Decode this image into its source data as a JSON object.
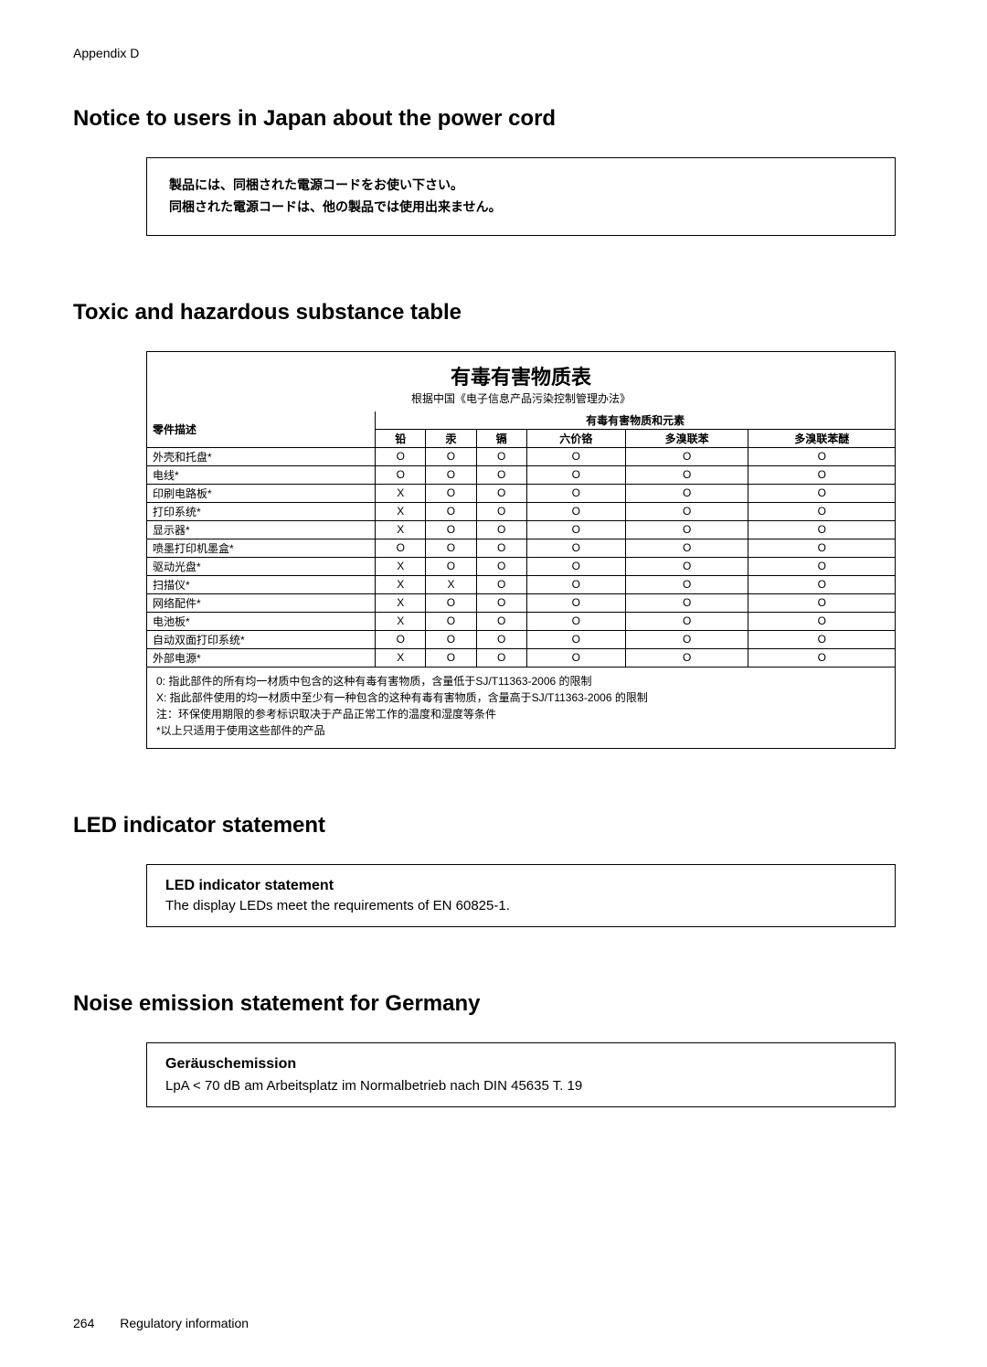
{
  "appendix_label": "Appendix D",
  "sections": {
    "japan_cord": {
      "heading": "Notice to users in Japan about the power cord",
      "lines": [
        "製品には、同梱された電源コードをお使い下さい。",
        "同梱された電源コードは、他の製品では使用出来ません。"
      ]
    },
    "toxic": {
      "heading": "Toxic and hazardous substance table",
      "title": "有毒有害物质表",
      "subtitle": "根据中国《电子信息产品污染控制管理办法》",
      "col_partdesc": "零件描述",
      "col_group": "有毒有害物质和元素",
      "substances": [
        "铅",
        "汞",
        "镉",
        "六价铬",
        "多溴联苯",
        "多溴联苯醚"
      ],
      "rows": [
        {
          "name": "外壳和托盘*",
          "vals": [
            "O",
            "O",
            "O",
            "O",
            "O",
            "O"
          ]
        },
        {
          "name": "电线*",
          "vals": [
            "O",
            "O",
            "O",
            "O",
            "O",
            "O"
          ]
        },
        {
          "name": "印刷电路板*",
          "vals": [
            "X",
            "O",
            "O",
            "O",
            "O",
            "O"
          ]
        },
        {
          "name": "打印系统*",
          "vals": [
            "X",
            "O",
            "O",
            "O",
            "O",
            "O"
          ]
        },
        {
          "name": "显示器*",
          "vals": [
            "X",
            "O",
            "O",
            "O",
            "O",
            "O"
          ]
        },
        {
          "name": "喷墨打印机墨盒*",
          "vals": [
            "O",
            "O",
            "O",
            "O",
            "O",
            "O"
          ]
        },
        {
          "name": "驱动光盘*",
          "vals": [
            "X",
            "O",
            "O",
            "O",
            "O",
            "O"
          ]
        },
        {
          "name": "扫描仪*",
          "vals": [
            "X",
            "X",
            "O",
            "O",
            "O",
            "O"
          ]
        },
        {
          "name": "网络配件*",
          "vals": [
            "X",
            "O",
            "O",
            "O",
            "O",
            "O"
          ]
        },
        {
          "name": "电池板*",
          "vals": [
            "X",
            "O",
            "O",
            "O",
            "O",
            "O"
          ]
        },
        {
          "name": "自动双面打印系统*",
          "vals": [
            "O",
            "O",
            "O",
            "O",
            "O",
            "O"
          ]
        },
        {
          "name": "外部电源*",
          "vals": [
            "X",
            "O",
            "O",
            "O",
            "O",
            "O"
          ]
        }
      ],
      "notes": [
        "0: 指此部件的所有均一材质中包含的这种有毒有害物质，含量低于SJ/T11363-2006 的限制",
        "X: 指此部件使用的均一材质中至少有一种包含的这种有毒有害物质，含量高于SJ/T11363-2006 的限制",
        "注：环保使用期限的参考标识取决于产品正常工作的温度和湿度等条件",
        "*以上只适用于使用这些部件的产品"
      ]
    },
    "led": {
      "heading": "LED indicator statement",
      "box_title": "LED indicator statement",
      "box_text": "The display LEDs meet the requirements of EN 60825-1."
    },
    "noise": {
      "heading": "Noise emission statement for Germany",
      "box_title": "Geräuschemission",
      "box_text": "LpA < 70 dB am Arbeitsplatz im Normalbetrieb nach DIN 45635 T. 19"
    }
  },
  "footer": {
    "page_number": "264",
    "title": "Regulatory information"
  }
}
